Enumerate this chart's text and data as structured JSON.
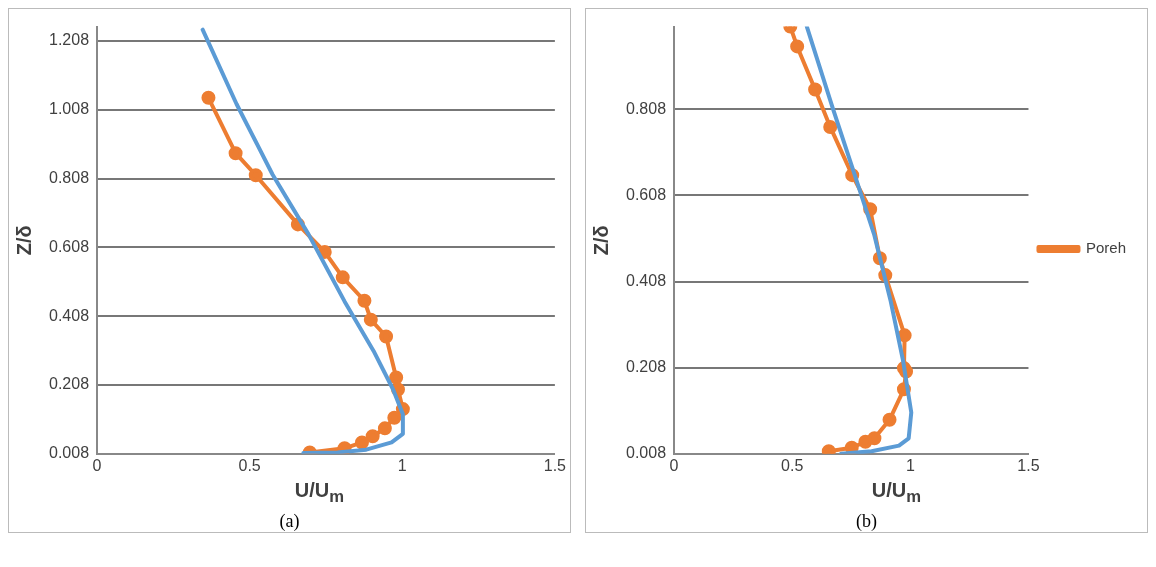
{
  "chart_data": [
    {
      "type": "line",
      "xlabel": "U/U$_{m}$",
      "ylabel": "Z/δ",
      "annotations": [
        "(a)"
      ],
      "xlim": [
        0,
        1.5
      ],
      "xticks": [
        0,
        0.5,
        1,
        1.5
      ],
      "ylim": [
        0.008,
        1.25
      ],
      "yticks": [
        0.008,
        0.208,
        0.408,
        0.608,
        0.808,
        1.008,
        1.208
      ],
      "grid": "y",
      "legend": false,
      "series": [
        {
          "color": "#5b9bd5",
          "marker": "none",
          "x": [
            0.346,
            0.457,
            0.575,
            0.693,
            0.811,
            0.906,
            0.97,
            1.002,
            1.002,
            0.965,
            0.882,
            0.788,
            0.676
          ],
          "values": [
            1.241,
            1.025,
            0.82,
            0.646,
            0.451,
            0.307,
            0.195,
            0.123,
            0.066,
            0.041,
            0.02,
            0.012,
            0.01
          ]
        },
        {
          "color": "#ed7d31",
          "marker": "circle",
          "x": [
            0.365,
            0.454,
            0.52,
            0.658,
            0.746,
            0.805,
            0.876,
            0.897,
            0.947,
            0.98,
            0.986,
            1.002,
            0.974,
            0.943,
            0.903,
            0.868,
            0.811,
            0.697
          ],
          "values": [
            1.043,
            0.882,
            0.818,
            0.675,
            0.595,
            0.521,
            0.453,
            0.398,
            0.349,
            0.23,
            0.195,
            0.138,
            0.113,
            0.082,
            0.059,
            0.041,
            0.024,
            0.012
          ]
        }
      ]
    },
    {
      "type": "line",
      "xlabel": "U/U$_{m}$",
      "ylabel": "Z/δ",
      "annotations": [
        "(b)"
      ],
      "xlim": [
        0,
        1.5
      ],
      "xticks": [
        0,
        0.5,
        1,
        1.5
      ],
      "ylim": [
        0.008,
        1.0
      ],
      "yticks": [
        0.008,
        0.208,
        0.408,
        0.608,
        0.808
      ],
      "grid": "y",
      "legend": "right",
      "series": [
        {
          "color": "#5b9bd5",
          "marker": "none",
          "x": [
            0.562,
            0.672,
            0.765,
            0.847,
            0.917,
            0.969,
            1.004,
            0.993,
            0.952,
            0.836,
            0.707
          ],
          "values": [
            1.0,
            0.81,
            0.655,
            0.517,
            0.362,
            0.225,
            0.104,
            0.044,
            0.027,
            0.014,
            0.008
          ]
        },
        {
          "name": "Poreh",
          "color": "#ed7d31",
          "marker": "circle",
          "x": [
            0.492,
            0.521,
            0.597,
            0.661,
            0.754,
            0.83,
            0.871,
            0.894,
            0.976,
            0.973,
            0.982,
            0.973,
            0.912,
            0.848,
            0.81,
            0.752,
            0.655
          ],
          "values": [
            1.0,
            0.954,
            0.854,
            0.767,
            0.655,
            0.576,
            0.462,
            0.423,
            0.283,
            0.207,
            0.199,
            0.158,
            0.087,
            0.044,
            0.036,
            0.022,
            0.014
          ]
        }
      ]
    }
  ]
}
